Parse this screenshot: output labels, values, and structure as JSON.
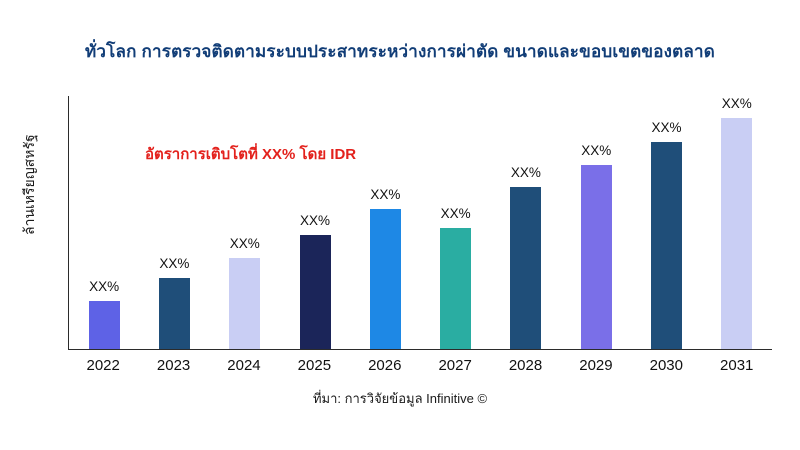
{
  "chart_data": {
    "type": "bar",
    "title": "ทั่วโลก การตรวจติดตามระบบประสาทระหว่างการผ่าตัด ขนาดและขอบเขตของตลาด",
    "title_color": "#113d77",
    "ylabel": "ล้านเหรียญสหรัฐ",
    "xlabel": "",
    "annotation": "อัตราการเติบโตที่ XX% โดย IDR",
    "annotation_color": "#e3211c",
    "source": "ที่มา: การวิจัยข้อมูล Infinitive ©",
    "categories": [
      "2022",
      "2023",
      "2024",
      "2025",
      "2026",
      "2027",
      "2028",
      "2029",
      "2030",
      "2031"
    ],
    "values": [
      47,
      70,
      90,
      113,
      138,
      120,
      160,
      182,
      205,
      230
    ],
    "bar_labels": [
      "XX%",
      "XX%",
      "XX%",
      "XX%",
      "XX%",
      "XX%",
      "XX%",
      "XX%",
      "XX%",
      "XX%"
    ],
    "bar_colors": [
      "#5e62e6",
      "#1f4e79",
      "#c9cef4",
      "#1b2559",
      "#1e88e5",
      "#2aada2",
      "#1f4e79",
      "#7a6fe8",
      "#1f4e79",
      "#c9cef4"
    ],
    "ylim": [
      0,
      250
    ],
    "grid": false,
    "legend": "none",
    "axis_color": "#2b2b2b"
  }
}
